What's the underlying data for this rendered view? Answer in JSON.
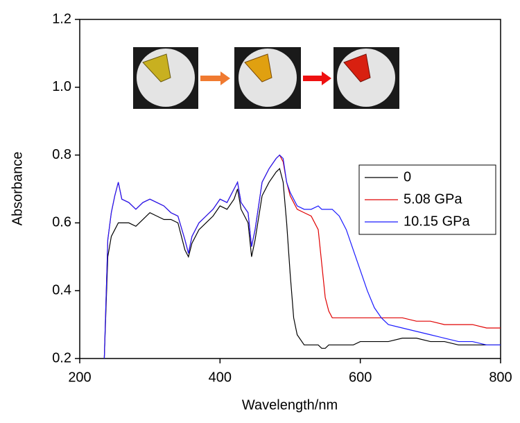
{
  "chart_data": {
    "type": "line",
    "x_label": "Wavelength/nm",
    "y_label": "Absorbance",
    "x": [
      235,
      240,
      245,
      250,
      255,
      260,
      270,
      280,
      290,
      300,
      310,
      320,
      330,
      340,
      350,
      355,
      360,
      370,
      380,
      390,
      400,
      410,
      420,
      425,
      430,
      440,
      445,
      450,
      460,
      470,
      480,
      485,
      490,
      495,
      500,
      505,
      510,
      520,
      530,
      540,
      545,
      550,
      555,
      560,
      570,
      580,
      590,
      600,
      610,
      620,
      630,
      640,
      660,
      680,
      700,
      720,
      740,
      760,
      780,
      800
    ],
    "series": [
      {
        "name": "0",
        "color": "#000000",
        "values": [
          0.2,
          0.5,
          0.56,
          0.58,
          0.6,
          0.6,
          0.6,
          0.59,
          0.61,
          0.63,
          0.62,
          0.61,
          0.61,
          0.6,
          0.52,
          0.5,
          0.54,
          0.58,
          0.6,
          0.62,
          0.65,
          0.64,
          0.67,
          0.7,
          0.64,
          0.6,
          0.5,
          0.55,
          0.68,
          0.72,
          0.75,
          0.76,
          0.72,
          0.6,
          0.45,
          0.32,
          0.27,
          0.24,
          0.24,
          0.24,
          0.23,
          0.23,
          0.24,
          0.24,
          0.24,
          0.24,
          0.24,
          0.25,
          0.25,
          0.25,
          0.25,
          0.25,
          0.26,
          0.26,
          0.25,
          0.25,
          0.24,
          0.24,
          0.24,
          0.24
        ]
      },
      {
        "name": "5.08 GPa",
        "color": "#e00000",
        "values": [
          0.2,
          0.55,
          0.63,
          0.68,
          0.72,
          0.67,
          0.66,
          0.64,
          0.66,
          0.67,
          0.66,
          0.65,
          0.63,
          0.62,
          0.55,
          0.51,
          0.56,
          0.6,
          0.62,
          0.64,
          0.67,
          0.66,
          0.7,
          0.72,
          0.66,
          0.63,
          0.53,
          0.58,
          0.72,
          0.76,
          0.79,
          0.8,
          0.78,
          0.72,
          0.68,
          0.66,
          0.64,
          0.63,
          0.62,
          0.58,
          0.48,
          0.38,
          0.34,
          0.32,
          0.32,
          0.32,
          0.32,
          0.32,
          0.32,
          0.32,
          0.32,
          0.32,
          0.32,
          0.31,
          0.31,
          0.3,
          0.3,
          0.3,
          0.29,
          0.29
        ]
      },
      {
        "name": "10.15 GPa",
        "color": "#1a1aff",
        "values": [
          0.2,
          0.55,
          0.63,
          0.68,
          0.72,
          0.67,
          0.66,
          0.64,
          0.66,
          0.67,
          0.66,
          0.65,
          0.63,
          0.62,
          0.55,
          0.51,
          0.56,
          0.6,
          0.62,
          0.64,
          0.67,
          0.66,
          0.7,
          0.72,
          0.66,
          0.63,
          0.53,
          0.58,
          0.72,
          0.76,
          0.79,
          0.8,
          0.79,
          0.72,
          0.69,
          0.67,
          0.65,
          0.64,
          0.64,
          0.65,
          0.64,
          0.64,
          0.64,
          0.64,
          0.62,
          0.58,
          0.52,
          0.46,
          0.4,
          0.35,
          0.32,
          0.3,
          0.29,
          0.28,
          0.27,
          0.26,
          0.25,
          0.25,
          0.24,
          0.24
        ]
      }
    ],
    "xlim": [
      200,
      800
    ],
    "xticks": [
      200,
      400,
      600,
      800
    ],
    "ylim": [
      0.2,
      1.2
    ],
    "yticks": [
      0.2,
      0.4,
      0.6,
      0.8,
      {
        "value": 1,
        "label": "1.0"
      },
      1.2
    ]
  }
}
